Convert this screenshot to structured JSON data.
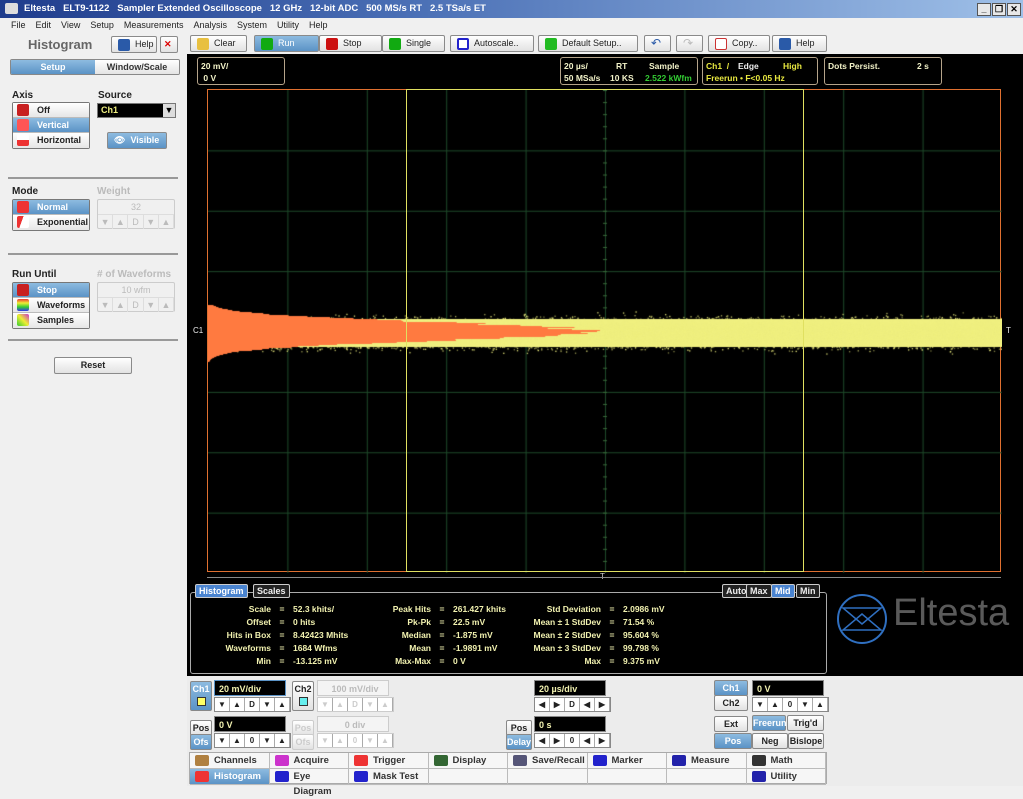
{
  "window": {
    "title": "Eltesta   ELT9-1122   Sampler Extended Oscilloscope   12 GHz   12-bit ADC   500 MS/s RT   2.5 TSa/s ET",
    "minimize": "_",
    "restore": "❐",
    "close": "✕"
  },
  "menu": [
    "File",
    "Edit",
    "View",
    "Setup",
    "Measurements",
    "Analysis",
    "System",
    "Utility",
    "Help"
  ],
  "toolbar": {
    "clear": "Clear",
    "run": "Run",
    "stop": "Stop",
    "single": "Single",
    "autoscale": "Autoscale..",
    "default_setup": "Default Setup..",
    "copy": "Copy..",
    "help": "Help"
  },
  "left": {
    "title": "Histogram",
    "help": "Help",
    "tabs": [
      "Setup",
      "Window/Scale"
    ],
    "axis_label": "Axis",
    "axis_options": [
      "Off",
      "Vertical",
      "Horizontal"
    ],
    "axis_selected": "Vertical",
    "source_label": "Source",
    "source_value": "Ch1",
    "visible": "Visible",
    "mode_label": "Mode",
    "mode_options": [
      "Normal",
      "Exponential"
    ],
    "mode_selected": "Normal",
    "weight_label": "Weight",
    "weight_value": "32",
    "run_until_label": "Run Until",
    "run_until_options": [
      "Stop",
      "Waveforms",
      "Samples"
    ],
    "run_until_selected": "Stop",
    "waveforms_label": "# of Waveforms",
    "waveforms_value": "10 wfm",
    "arrows": [
      "▼",
      "▲",
      "D",
      "▼",
      "▲"
    ],
    "reset": "Reset"
  },
  "readouts": {
    "ch_scale": "20 mV/",
    "ch_offset": "0 V",
    "timebase": "20 µs/",
    "mode": "RT",
    "acq": "Sample",
    "rate": "50 MSa/s",
    "length": "10 KS",
    "wfm_rate": "2.522 kWfm",
    "trig_src": "Ch1  /",
    "trig_type": "Edge",
    "trig_level": "High",
    "trig_mode": "Freerun • F<0.05 Hz",
    "persist": "Dots Persist.",
    "persist_time": "2 s"
  },
  "markers": {
    "c1": "C1",
    "t": "T",
    "trig_pos": "T"
  },
  "colors": {
    "waveform": "#f0f080",
    "histogram": "#ff7a40",
    "graticule_border": "#e07030",
    "window": "#e0e060",
    "grid": "#1e4a2a"
  },
  "measurements": {
    "tabs": [
      "Histogram",
      "Scales"
    ],
    "active_tab": "Histogram",
    "scale_tabs": [
      "Auto",
      "Max",
      "Mid",
      "Min"
    ],
    "active_scale": "Mid",
    "col1": [
      [
        "Scale",
        "52.3 khits/"
      ],
      [
        "Offset",
        "0 hits"
      ],
      [
        "Hits in Box",
        "8.42423 Mhits"
      ],
      [
        "Waveforms",
        "1684 Wfms"
      ],
      [
        "Min",
        "-13.125 mV"
      ]
    ],
    "col2": [
      [
        "Peak Hits",
        "261.427 khits"
      ],
      [
        "Pk-Pk",
        "22.5 mV"
      ],
      [
        "Median",
        "-1.875 mV"
      ],
      [
        "Mean",
        "-1.9891 mV"
      ],
      [
        "Max-Max",
        "0 V"
      ]
    ],
    "col3": [
      [
        "Std Deviation",
        "2.0986 mV"
      ],
      [
        "Mean ± 1 StdDev",
        "71.54 %"
      ],
      [
        "Mean ± 2 StdDev",
        "95.604 %"
      ],
      [
        "Mean ± 3 StdDev",
        "99.798 %"
      ],
      [
        "Max",
        "9.375 mV"
      ]
    ]
  },
  "logo": "Eltesta",
  "controls": {
    "ch1": "Ch1",
    "ch1_scale": "20 mV/div",
    "ch2": "Ch2",
    "ch2_scale": "100 mV/div",
    "pos": "Pos",
    "ofs": "Ofs",
    "ch1_pos": "0 V",
    "ch2_pos": "0 div",
    "timebase": "20 µs/div",
    "delay_label": "Delay",
    "delay": "0 s",
    "trig_ch1": "Ch1",
    "trig_ch2": "Ch2",
    "ext": "Ext",
    "trig_level": "0 V",
    "freerun": "Freerun",
    "trigd": "Trig'd",
    "slope": [
      "Pos",
      "Neg",
      "Bislope"
    ],
    "v_arrows": [
      "▼",
      "▲",
      "D",
      "▼",
      "▲"
    ],
    "v0_arrows": [
      "▼",
      "▲",
      "0",
      "▼",
      "▲"
    ],
    "h_arrows": [
      "◀",
      "▶",
      "D",
      "◀",
      "▶"
    ],
    "h0_arrows": [
      "◀",
      "▶",
      "0",
      "◀",
      "▶"
    ]
  },
  "nav": [
    [
      "Channels",
      "Acquire",
      "Trigger",
      "Display",
      "Save/Recall",
      "Marker",
      "Measure",
      "Math"
    ],
    [
      "Histogram",
      "Eye Diagram",
      "Mask Test",
      "",
      "",
      "",
      "",
      "Utility"
    ]
  ],
  "nav_active": "Histogram"
}
